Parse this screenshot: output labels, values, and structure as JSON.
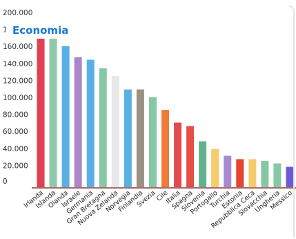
{
  "badge": {
    "label": "Economia"
  },
  "chart_data": {
    "type": "bar",
    "title": "",
    "xlabel": "",
    "ylabel": "",
    "ylim": [
      0,
      200000
    ],
    "y_ticks": [
      {
        "value": 0,
        "label": "0"
      },
      {
        "value": 20000,
        "label": "20.000"
      },
      {
        "value": 40000,
        "label": "40.000"
      },
      {
        "value": 60000,
        "label": "60.000"
      },
      {
        "value": 80000,
        "label": "80.000"
      },
      {
        "value": 100000,
        "label": "100.000"
      },
      {
        "value": 120000,
        "label": "120.000"
      },
      {
        "value": 140000,
        "label": "140.000"
      },
      {
        "value": 160000,
        "label": "160.000"
      },
      {
        "value": 180000,
        "label": "180.000"
      },
      {
        "value": 200000,
        "label": "200.000"
      }
    ],
    "categories": [
      "Irlanda",
      "Islanda",
      "Olanda",
      "Israele",
      "Germania",
      "Gran Bretagna",
      "Nuova Zelanda",
      "Norvegia",
      "Finlandia",
      "Svezia",
      "Cile",
      "Italia",
      "Spagna",
      "Slovenia",
      "Portogallo",
      "Turchia",
      "Estonia",
      "Repubblica Ceca",
      "Slovacchia",
      "Ungheria",
      "Messico"
    ],
    "values": [
      182000,
      178000,
      166000,
      153000,
      150000,
      140000,
      131000,
      115000,
      115000,
      106000,
      91000,
      76000,
      72000,
      54000,
      45000,
      37000,
      33000,
      33000,
      31000,
      28000,
      24000
    ],
    "colors": [
      "#e0404f",
      "#8fc9a9",
      "#5aafe3",
      "#ad86c9",
      "#5ab0e6",
      "#86c8a5",
      "#e8e8e8",
      "#5aafe3",
      "#999184",
      "#86c8a5",
      "#f07a38",
      "#e24a52",
      "#e55046",
      "#64b28c",
      "#f4cc6c",
      "#a88ad0",
      "#e44432",
      "#f4cc6c",
      "#86c8a5",
      "#86c8a5",
      "#6b5bd6"
    ],
    "grid": false,
    "legend": "none"
  }
}
